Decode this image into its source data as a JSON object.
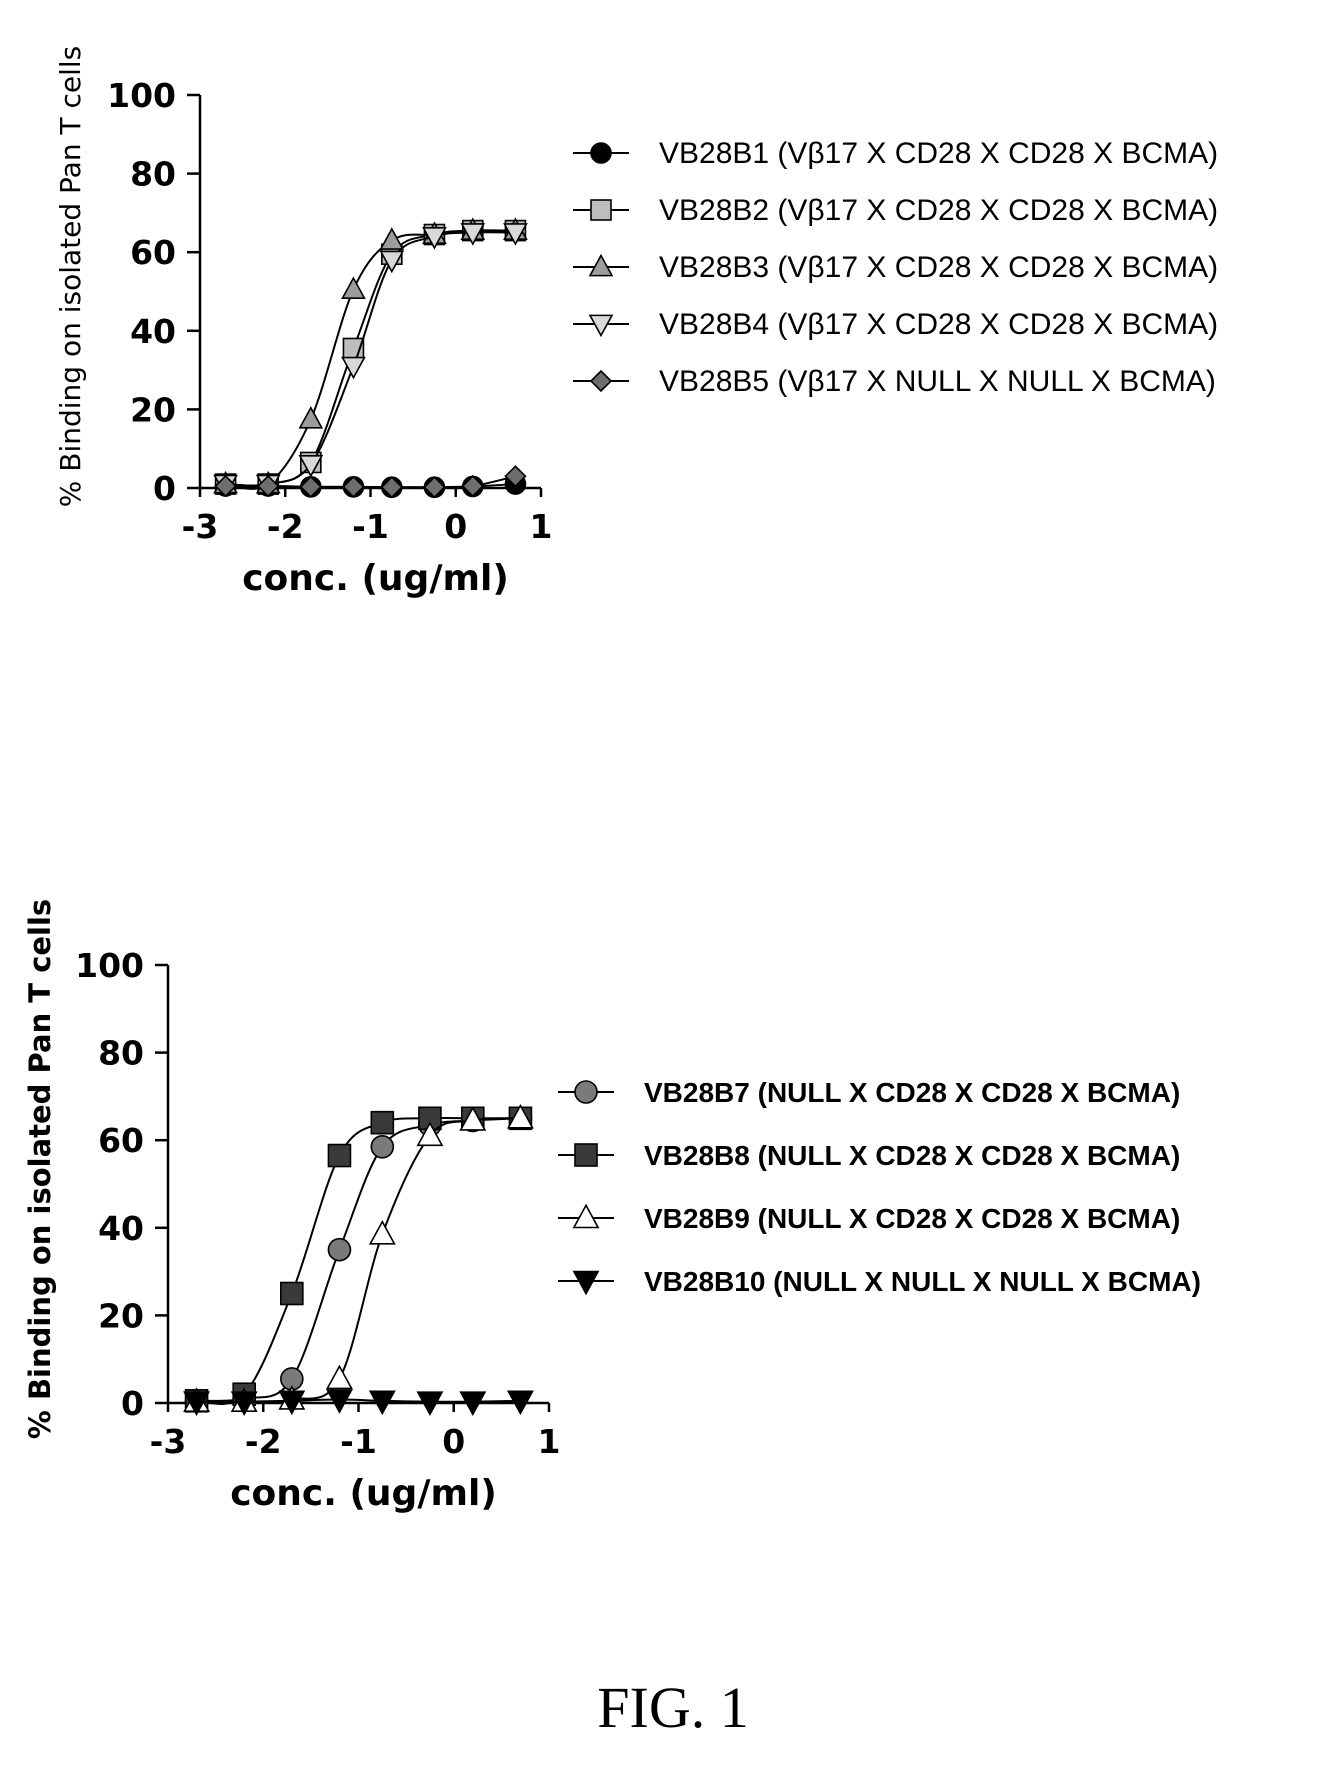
{
  "chart_data": [
    {
      "type": "line",
      "xlabel": "conc. (ug/ml)",
      "ylabel": "% Binding on isolated Pan T cells",
      "xlim": [
        -3,
        1
      ],
      "ylim": [
        0,
        100
      ],
      "xticks": [
        -3,
        -2,
        -1,
        0,
        1
      ],
      "yticks": [
        0,
        20,
        40,
        60,
        80,
        100
      ],
      "x": [
        -2.7,
        -2.2,
        -1.7,
        -1.2,
        -0.75,
        -0.25,
        0.2,
        0.7
      ],
      "legend_placement": "right",
      "series": [
        {
          "name": "VB28B1 (Vβ17 X CD28 X CD28 X BCMA)",
          "marker": "circle",
          "color": "#000000",
          "values": [
            0.5,
            0.5,
            0.3,
            0.3,
            0.2,
            0.2,
            0.4,
            1.0
          ]
        },
        {
          "name": "VB28B2 (Vβ17 X CD28 X CD28 X BCMA)",
          "marker": "square",
          "color": "#bdbdbd",
          "values": [
            1,
            1,
            6.5,
            35.5,
            59.5,
            64.5,
            65.5,
            65.5
          ]
        },
        {
          "name": "VB28B3 (Vβ17 X CD28 X CD28 X BCMA)",
          "marker": "triangle-up",
          "color": "#9c9c9c",
          "values": [
            1,
            1,
            17.5,
            50.5,
            63,
            64.5,
            65.5,
            65.5
          ]
        },
        {
          "name": "VB28B4 (Vβ17 X CD28 X CD28 X BCMA)",
          "marker": "triangle-down",
          "color": "#d9d9d9",
          "values": [
            1,
            1,
            6,
            31,
            58,
            64,
            65,
            65
          ]
        },
        {
          "name": "VB28B5 (Vβ17 X NULL X NULL X BCMA)",
          "marker": "diamond",
          "color": "#6e6e6e",
          "values": [
            0.5,
            0.5,
            0.3,
            0.3,
            0.2,
            0.2,
            0.5,
            3.0
          ]
        }
      ]
    },
    {
      "type": "line",
      "xlabel": "conc. (ug/ml)",
      "ylabel": "% Binding on isolated Pan T cells",
      "xlim": [
        -3,
        1
      ],
      "ylim": [
        0,
        100
      ],
      "xticks": [
        -3,
        -2,
        -1,
        0,
        1
      ],
      "yticks": [
        0,
        20,
        40,
        60,
        80,
        100
      ],
      "x": [
        -2.7,
        -2.2,
        -1.7,
        -1.2,
        -0.75,
        -0.25,
        0.2,
        0.7
      ],
      "legend_placement": "right",
      "series": [
        {
          "name": "VB28B7 (NULL X CD28 X CD28 X BCMA)",
          "marker": "circle",
          "color": "#7a7a7a",
          "values": [
            0.5,
            1,
            5.5,
            35,
            58.5,
            63.5,
            64.5,
            65
          ]
        },
        {
          "name": "VB28B8 (NULL X CD28 X CD28 X BCMA)",
          "marker": "square",
          "color": "#3a3a3a",
          "values": [
            0.5,
            2,
            25,
            56.5,
            64,
            65,
            65,
            65
          ]
        },
        {
          "name": "VB28B9 (NULL X CD28 X CD28 X BCMA)",
          "marker": "triangle-up-open",
          "color": "#ffffff",
          "values": [
            0.3,
            0.3,
            0.8,
            5.5,
            38.5,
            61,
            64.5,
            65
          ]
        },
        {
          "name": "VB28B10 (NULL X NULL X NULL X BCMA)",
          "marker": "triangle-down",
          "color": "#000000",
          "values": [
            0.3,
            0.3,
            0.5,
            0.8,
            0.5,
            0.3,
            0.3,
            0.5
          ]
        }
      ]
    }
  ],
  "figure_caption": "FIG. 1"
}
